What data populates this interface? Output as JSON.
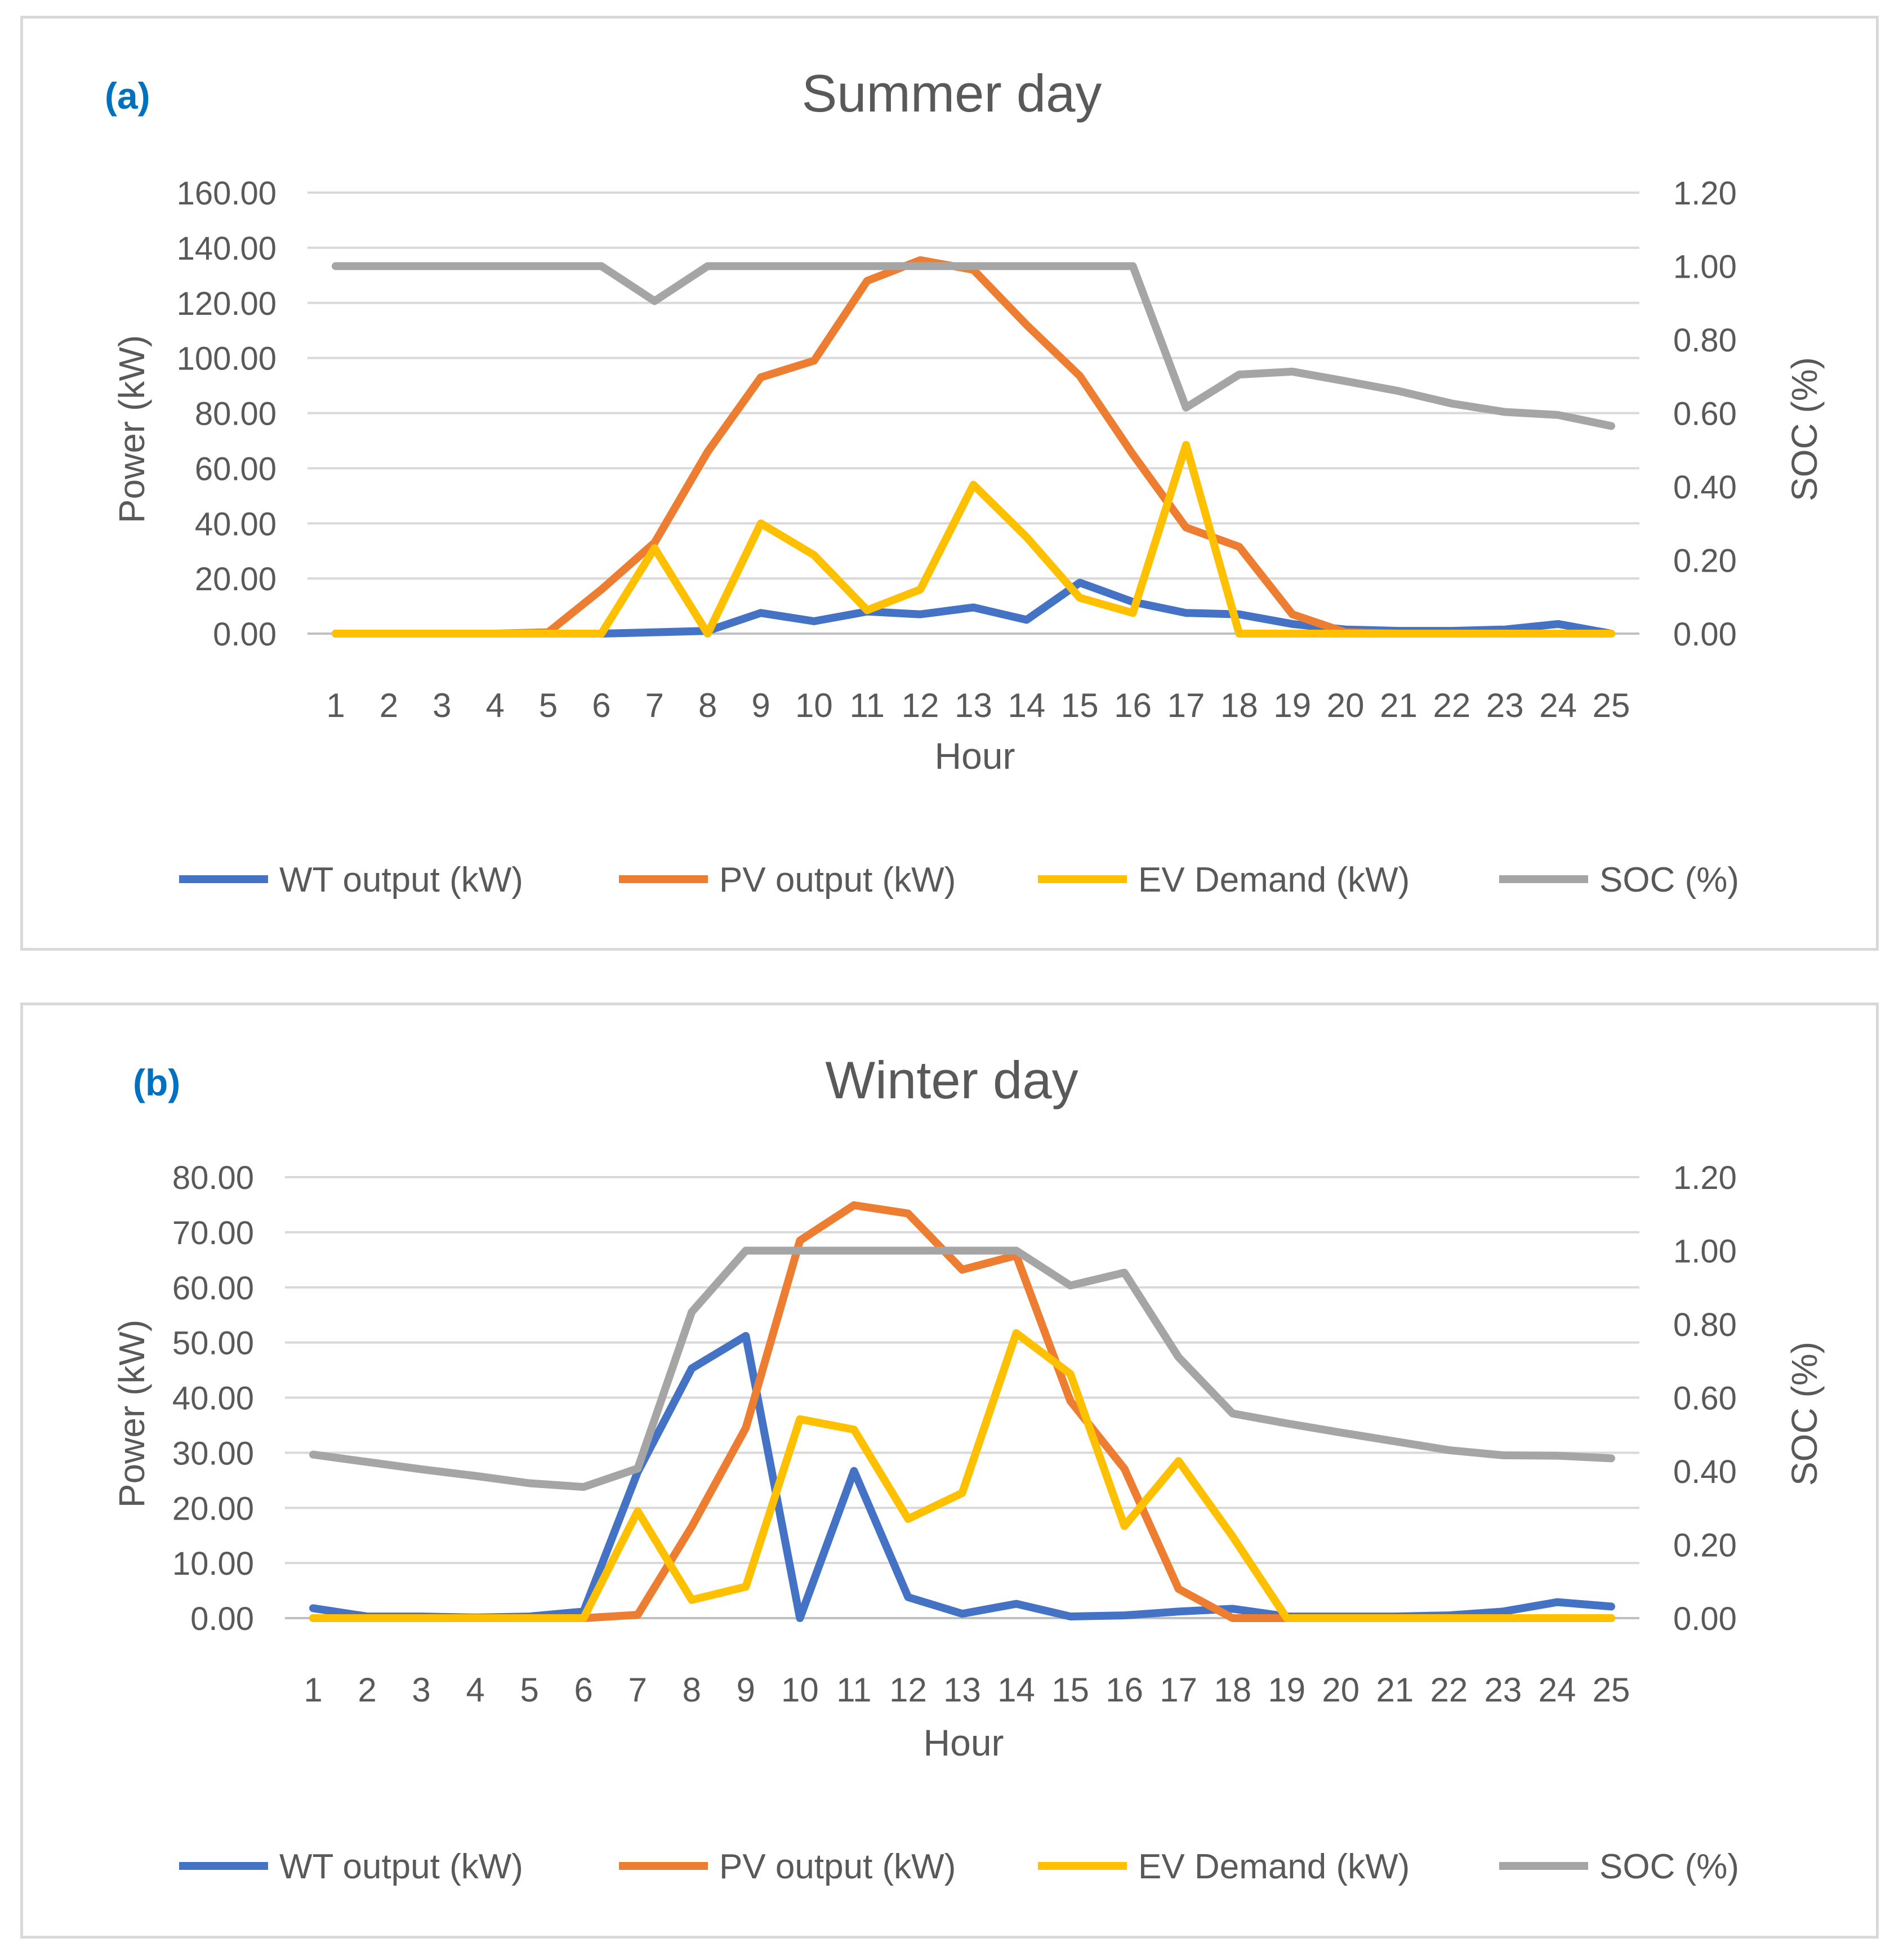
{
  "legend_labels": [
    "WT output (kW)",
    "PV output (kW)",
    "EV Demand (kW)",
    "SOC (%)"
  ],
  "chart_data": [
    {
      "type": "line",
      "panel_label": "(a)",
      "title": "Summer day",
      "xlabel": "Hour",
      "ylabel": "Power (kW)",
      "y2label": "SOC (%)",
      "categories": [
        "1",
        "2",
        "3",
        "4",
        "5",
        "6",
        "7",
        "8",
        "9",
        "10",
        "11",
        "12",
        "13",
        "14",
        "15",
        "16",
        "17",
        "18",
        "19",
        "20",
        "21",
        "22",
        "23",
        "24",
        "25"
      ],
      "ylim": [
        0,
        160
      ],
      "y_ticks": [
        "0.00",
        "20.00",
        "40.00",
        "60.00",
        "80.00",
        "100.00",
        "120.00",
        "140.00",
        "160.00"
      ],
      "y2lim": [
        0,
        1.2
      ],
      "y2_ticks": [
        "0.00",
        "0.20",
        "0.40",
        "0.60",
        "0.80",
        "1.00",
        "1.20"
      ],
      "grid": true,
      "legend": "bottom",
      "series": [
        {
          "name": "WT output (kW)",
          "axis": "left",
          "color": "#4472C4",
          "values": [
            0,
            0,
            0,
            0,
            0,
            0,
            0.5,
            1,
            7.5,
            4.5,
            8,
            7,
            9.5,
            5,
            18.5,
            11.5,
            7.5,
            7,
            3.5,
            1.5,
            1,
            1,
            1.5,
            3.5,
            0
          ]
        },
        {
          "name": "PV output (kW)",
          "axis": "left",
          "color": "#ED7D31",
          "values": [
            0,
            0,
            0,
            0,
            0.5,
            16,
            33,
            66,
            93,
            99,
            128,
            135.5,
            132,
            112,
            93.5,
            65,
            38.5,
            31.5,
            7,
            0.5,
            0,
            0,
            0,
            0,
            0
          ]
        },
        {
          "name": "EV Demand (kW)",
          "axis": "left",
          "color": "#FFC000",
          "values": [
            0,
            0,
            0,
            0,
            0,
            0,
            31,
            0,
            40,
            28.5,
            8.5,
            16,
            54,
            35,
            13,
            7.5,
            68.5,
            0,
            0,
            0,
            0,
            0,
            0,
            0,
            0
          ]
        },
        {
          "name": "SOC (%)",
          "axis": "right",
          "color": "#A5A5A5",
          "values": [
            1.0,
            1.0,
            1.0,
            1.0,
            1.0,
            1.0,
            0.905,
            1.0,
            1.0,
            1.0,
            1.0,
            1.0,
            1.0,
            1.0,
            1.0,
            1.0,
            0.615,
            0.705,
            0.713,
            0.687,
            0.66,
            0.626,
            0.603,
            0.595,
            0.565
          ]
        }
      ]
    },
    {
      "type": "line",
      "panel_label": "(b)",
      "title": "Winter day",
      "xlabel": "Hour",
      "ylabel": "Power (kW)",
      "y2label": "SOC (%)",
      "categories": [
        "1",
        "2",
        "3",
        "4",
        "5",
        "6",
        "7",
        "8",
        "9",
        "10",
        "11",
        "12",
        "13",
        "14",
        "15",
        "16",
        "17",
        "18",
        "19",
        "20",
        "21",
        "22",
        "23",
        "24",
        "25"
      ],
      "ylim": [
        0,
        80
      ],
      "y_ticks": [
        "0.00",
        "10.00",
        "20.00",
        "30.00",
        "40.00",
        "50.00",
        "60.00",
        "70.00",
        "80.00"
      ],
      "y2lim": [
        0,
        1.2
      ],
      "y2_ticks": [
        "0.00",
        "0.20",
        "0.40",
        "0.60",
        "0.80",
        "1.00",
        "1.20"
      ],
      "grid": true,
      "legend": "bottom",
      "series": [
        {
          "name": "WT output (kW)",
          "axis": "left",
          "color": "#4472C4",
          "values": [
            1.8,
            0.3,
            0.3,
            0.1,
            0.3,
            1.2,
            26.5,
            45.3,
            51.2,
            0,
            26.7,
            3.8,
            0.8,
            2.6,
            0.3,
            0.5,
            1.2,
            1.7,
            0.3,
            0.3,
            0.3,
            0.5,
            1.2,
            2.9,
            2.1
          ]
        },
        {
          "name": "PV output (kW)",
          "axis": "left",
          "color": "#ED7D31",
          "values": [
            0,
            0,
            0,
            0,
            0,
            0,
            0.6,
            16.6,
            34.5,
            68.5,
            74.9,
            73.4,
            63.2,
            65.8,
            39.4,
            27.1,
            5.3,
            0,
            0,
            0,
            0,
            0,
            0,
            0,
            0
          ]
        },
        {
          "name": "EV Demand (kW)",
          "axis": "left",
          "color": "#FFC000",
          "values": [
            0,
            0,
            0,
            0,
            0,
            0,
            19.4,
            3.3,
            5.7,
            36.1,
            34.2,
            18.0,
            22.7,
            51.7,
            44.3,
            16.7,
            28.5,
            14.8,
            0,
            0,
            0,
            0,
            0,
            0,
            0
          ]
        },
        {
          "name": "SOC (%)",
          "axis": "right",
          "color": "#A5A5A5",
          "values": [
            0.445,
            0.425,
            0.405,
            0.387,
            0.367,
            0.357,
            0.407,
            0.833,
            1.0,
            1.0,
            1.0,
            1.0,
            1.0,
            1.0,
            0.905,
            0.94,
            0.71,
            0.557,
            0.53,
            0.505,
            0.481,
            0.457,
            0.443,
            0.442,
            0.435
          ]
        }
      ]
    }
  ]
}
